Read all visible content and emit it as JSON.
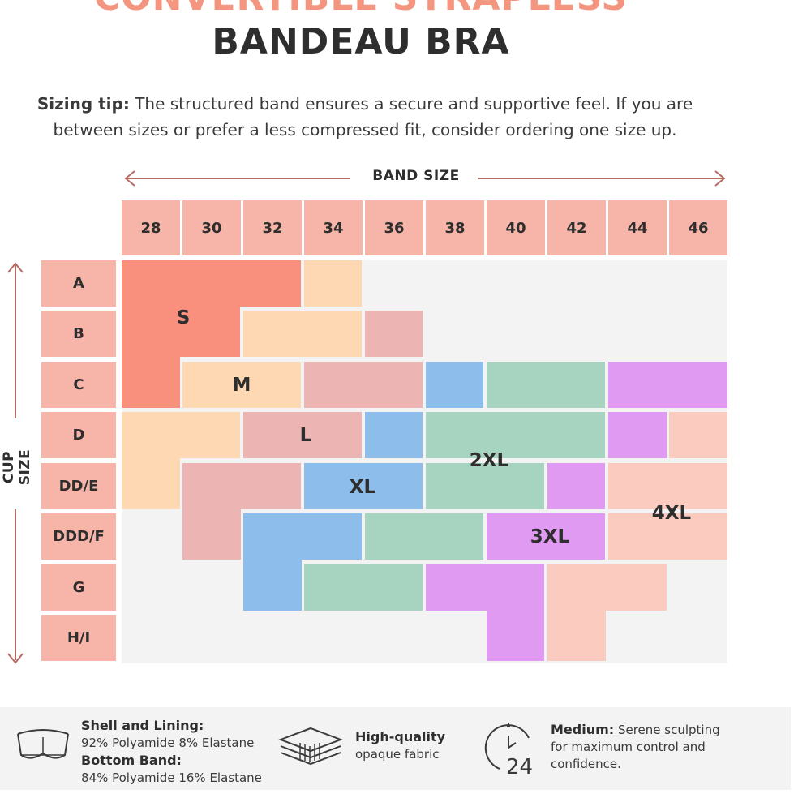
{
  "title": {
    "line1": "CONVERTIBLE STRAPLESS",
    "line2": "BANDEAU BRA"
  },
  "sizing_tip": {
    "label": "Sizing tip:",
    "text_line1": "The structured band ensures a secure and supportive feel. If you are",
    "text_line2": "between sizes or prefer a less compressed fit, consider ordering one size up."
  },
  "axes": {
    "band_label": "BAND SIZE",
    "cup_label": "CUP SIZE"
  },
  "band_sizes": [
    "28",
    "30",
    "32",
    "34",
    "36",
    "38",
    "40",
    "42",
    "44",
    "46"
  ],
  "cup_sizes": [
    "A",
    "B",
    "C",
    "D",
    "DD/E",
    "DDD/F",
    "G",
    "H/I"
  ],
  "size_regions": [
    {
      "label": "S",
      "color": "#f98f7d"
    },
    {
      "label": "M",
      "color": "#fdd8b2"
    },
    {
      "label": "L",
      "color": "#ecb5b3"
    },
    {
      "label": "XL",
      "color": "#8dbdea"
    },
    {
      "label": "2XL",
      "color": "#a7d4c0"
    },
    {
      "label": "3XL",
      "color": "#e09af1"
    },
    {
      "label": "4XL",
      "color": "#fbcbbf"
    }
  ],
  "colors": {
    "header_cell": "#f6b5a8",
    "arrow": "#b56b62",
    "title_top": "#f3957f",
    "grid_background": "#f4f3f3"
  },
  "footer": {
    "material_title1": "Shell and Lining:",
    "material_value1": "92% Polyamide 8% Elastane",
    "material_title2": "Bottom Band:",
    "material_value2": "84% Polyamide 16% Elastane",
    "fabric_title": "High-quality",
    "fabric_value": "opaque fabric",
    "support_title": "Medium:",
    "support_line1": "Serene sculpting",
    "support_line2": "for maximum control and",
    "support_line3": "confidence.",
    "clock_number": "24",
    "icons": [
      "bra-icon",
      "fabric-layers-icon",
      "clock-24-icon"
    ]
  }
}
